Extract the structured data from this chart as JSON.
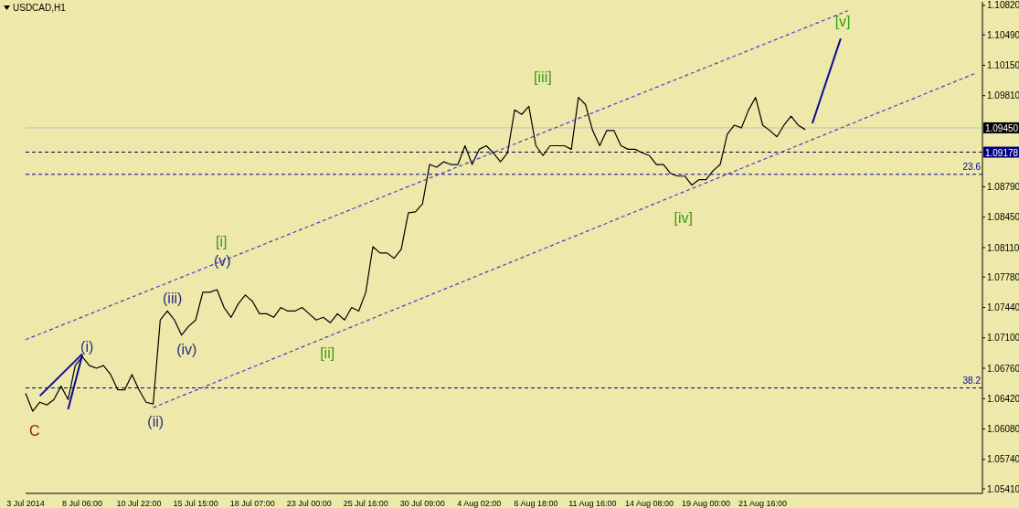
{
  "chart_data": {
    "type": "line",
    "title": "USDCAD,H1",
    "categories": [
      "3 Jul 2014",
      null,
      null,
      null,
      null,
      null,
      null,
      null,
      "8 Jul 06:00",
      null,
      null,
      null,
      null,
      null,
      null,
      null,
      "10 Jul 22:00",
      null,
      null,
      null,
      null,
      null,
      null,
      null,
      "15 Jul 15:00",
      null,
      null,
      null,
      null,
      null,
      null,
      null,
      "18 Jul 07:00",
      null,
      null,
      null,
      null,
      null,
      null,
      null,
      "23 Jul 00:00",
      null,
      null,
      null,
      null,
      null,
      null,
      null,
      "25 Jul 16:00",
      null,
      null,
      null,
      null,
      null,
      null,
      null,
      "30 Jul 09:00",
      null,
      null,
      null,
      null,
      null,
      null,
      null,
      "4 Aug 02:00",
      null,
      null,
      null,
      null,
      null,
      null,
      null,
      "6 Aug 18:00",
      null,
      null,
      null,
      null,
      null,
      null,
      null,
      "11 Aug 16:00",
      null,
      null,
      null,
      null,
      null,
      null,
      null,
      "14 Aug 08:00",
      null,
      null,
      null,
      null,
      null,
      null,
      null,
      "19 Aug 00:00",
      null,
      null,
      null,
      null,
      null,
      null,
      null,
      "21 Aug 16:00",
      null,
      null,
      null,
      null,
      null,
      null,
      null,
      null,
      null,
      null,
      null,
      null,
      null,
      null,
      null,
      null,
      null,
      null,
      null,
      null,
      null,
      null,
      null,
      null,
      null,
      null,
      null,
      null,
      null,
      null,
      null
    ],
    "series": [
      {
        "color": "#000000",
        "line_style": "solid",
        "values": [
          1.0648,
          1.0628,
          1.0638,
          1.0635,
          1.0641,
          1.0656,
          1.0641,
          1.0679,
          1.0689,
          1.0679,
          1.0676,
          1.0679,
          1.0669,
          1.0652,
          1.0652,
          1.0669,
          1.0652,
          1.0638,
          1.0636,
          1.073,
          1.074,
          1.073,
          1.0713,
          1.0723,
          1.073,
          1.0761,
          1.0761,
          1.0764,
          1.0744,
          1.0733,
          1.0748,
          1.0758,
          1.0751,
          1.0737,
          1.0737,
          1.0733,
          1.0744,
          1.074,
          1.074,
          1.0744,
          1.0737,
          1.073,
          1.0733,
          1.0727,
          1.0737,
          1.073,
          1.0744,
          1.074,
          1.0761,
          1.0812,
          1.0805,
          1.0805,
          1.0799,
          1.0809,
          1.085,
          1.0851,
          1.086,
          1.0904,
          1.0901,
          1.0907,
          1.0904,
          1.0904,
          1.0925,
          1.0904,
          1.0921,
          1.0925,
          1.0917,
          1.0907,
          1.0917,
          1.0965,
          1.096,
          1.0969,
          1.0925,
          1.0914,
          1.0925,
          1.0925,
          1.0925,
          1.0921,
          1.0979,
          1.0971,
          1.0942,
          1.0925,
          1.0942,
          1.0942,
          1.0925,
          1.0921,
          1.0921,
          1.0917,
          1.0914,
          1.0904,
          1.0904,
          1.0894,
          1.0891,
          1.0891,
          1.0881,
          1.0887,
          1.0887,
          1.0897,
          1.0904,
          1.0938,
          1.0948,
          1.0945,
          1.0965,
          1.0979,
          1.0948,
          1.0942,
          1.0935,
          1.0948,
          1.0958,
          1.0948,
          1.0943,
          null,
          null,
          null,
          null,
          null,
          null,
          null,
          null,
          null,
          null,
          null,
          null,
          null,
          null,
          null,
          null,
          null,
          null,
          null,
          null,
          null,
          null,
          null,
          null,
          null
        ]
      },
      {
        "type": "line",
        "color": "#4a3cc8",
        "line_style": "dashed",
        "values": [
          1.0708,
          null,
          null,
          null,
          null,
          null,
          null,
          null,
          null,
          null,
          null,
          null,
          null,
          null,
          null,
          null,
          null,
          null,
          null,
          null,
          null,
          null,
          null,
          null,
          null,
          null,
          null,
          null,
          null,
          null,
          null,
          null,
          null,
          null,
          null,
          null,
          null,
          null,
          null,
          null,
          null,
          null,
          null,
          null,
          null,
          null,
          null,
          null,
          null,
          null,
          null,
          null,
          null,
          null,
          null,
          null,
          null,
          null,
          null,
          null,
          null,
          null,
          null,
          null,
          null,
          null,
          null,
          null,
          null,
          null,
          null,
          null,
          null,
          null,
          null,
          null,
          null,
          null,
          null,
          null,
          null,
          null,
          null,
          null,
          null,
          null,
          null,
          null,
          null,
          null,
          null,
          null,
          null,
          null,
          null,
          null,
          null,
          null,
          null,
          null,
          null,
          null,
          null,
          null,
          null,
          null,
          null,
          null,
          null,
          null,
          null,
          null,
          null,
          null,
          null,
          null,
          1.1076,
          null,
          null,
          null,
          null,
          null,
          null,
          null,
          null,
          null,
          null,
          null,
          null,
          null,
          null,
          null,
          null,
          null,
          null,
          null
        ]
      },
      {
        "type": "line",
        "color": "#4a3cc8",
        "line_style": "dashed",
        "values": [
          null,
          null,
          null,
          null,
          null,
          null,
          null,
          null,
          null,
          null,
          null,
          null,
          null,
          null,
          null,
          null,
          null,
          null,
          1.0632,
          null,
          null,
          null,
          null,
          null,
          null,
          null,
          null,
          null,
          null,
          null,
          null,
          null,
          null,
          null,
          null,
          null,
          null,
          null,
          null,
          null,
          null,
          null,
          null,
          null,
          null,
          null,
          null,
          null,
          null,
          null,
          null,
          null,
          null,
          null,
          null,
          null,
          null,
          null,
          null,
          null,
          null,
          null,
          null,
          null,
          null,
          null,
          null,
          null,
          null,
          null,
          null,
          null,
          null,
          null,
          null,
          null,
          null,
          null,
          null,
          null,
          null,
          null,
          null,
          null,
          null,
          null,
          null,
          null,
          null,
          null,
          null,
          null,
          null,
          null,
          null,
          null,
          null,
          null,
          null,
          null,
          null,
          null,
          null,
          null,
          null,
          null,
          null,
          null,
          null,
          null,
          null,
          null,
          null,
          null,
          null,
          null,
          null,
          null,
          null,
          null,
          null,
          null,
          null,
          null,
          null,
          null,
          null,
          null,
          null,
          null,
          null,
          null,
          null,
          null,
          1.1006,
          null
        ]
      },
      {
        "type": "line",
        "color": "#0a0a9a",
        "line_style": "solid",
        "values": [
          null,
          null,
          null,
          null,
          null,
          null,
          null,
          null,
          null,
          null,
          null,
          null,
          null,
          null,
          null,
          null,
          null,
          null,
          null,
          null,
          null,
          null,
          null,
          null,
          null,
          null,
          null,
          null,
          null,
          null,
          null,
          null,
          null,
          null,
          null,
          null,
          null,
          null,
          null,
          null,
          null,
          null,
          null,
          null,
          null,
          null,
          null,
          null,
          null,
          null,
          null,
          null,
          null,
          null,
          null,
          null,
          null,
          null,
          null,
          null,
          null,
          null,
          null,
          null,
          null,
          null,
          null,
          null,
          null,
          null,
          null,
          null,
          null,
          null,
          null,
          null,
          null,
          null,
          null,
          null,
          null,
          null,
          null,
          null,
          null,
          null,
          null,
          null,
          null,
          null,
          null,
          null,
          null,
          null,
          null,
          null,
          null,
          null,
          null,
          null,
          null,
          null,
          null,
          null,
          null,
          null,
          null,
          null,
          null,
          null,
          null,
          1.095,
          null,
          null,
          null,
          1.1045,
          null,
          null,
          null,
          null,
          null,
          null,
          null,
          null,
          null,
          null,
          null,
          null,
          null,
          null,
          null,
          null,
          null,
          null,
          null,
          null
        ]
      },
      {
        "type": "line",
        "color": "#0a0a9a",
        "line_style": "solid",
        "values": [
          null,
          null,
          1.0645,
          null,
          null,
          null,
          null,
          null,
          1.0692,
          null,
          null,
          null,
          null,
          null,
          null,
          null,
          null,
          null,
          null,
          null,
          null,
          null,
          null,
          null,
          null,
          null,
          null,
          null,
          null,
          null,
          null,
          null,
          null,
          null,
          null,
          null,
          null,
          null,
          null,
          null,
          null,
          null,
          null,
          null,
          null,
          null,
          null,
          null,
          null,
          null,
          null,
          null,
          null,
          null,
          null,
          null,
          null,
          null,
          null,
          null,
          null,
          null,
          null,
          null,
          null,
          null,
          null,
          null,
          null,
          null,
          null,
          null,
          null,
          null,
          null,
          null,
          null,
          null,
          null,
          null,
          null,
          null,
          null,
          null,
          null,
          null,
          null,
          null,
          null,
          null,
          null,
          null,
          null,
          null,
          null,
          null,
          null,
          null,
          null,
          null,
          null,
          null,
          null,
          null,
          null,
          null,
          null,
          null,
          null,
          null,
          null,
          null,
          null,
          null,
          null,
          null,
          null,
          null,
          null,
          null,
          null,
          null,
          null,
          null,
          null,
          null,
          null,
          null,
          null,
          null,
          null,
          null,
          null,
          null,
          null,
          null
        ]
      },
      {
        "type": "line",
        "color": "#0a0a9a",
        "line_style": "solid",
        "values": [
          null,
          null,
          null,
          null,
          null,
          null,
          1.063,
          null,
          1.0691,
          null,
          null,
          null,
          null,
          null,
          null,
          null,
          null,
          null,
          null,
          null,
          null,
          null,
          null,
          null,
          null,
          null,
          null,
          null,
          null,
          null,
          null,
          null,
          null,
          null,
          null,
          null,
          null,
          null,
          null,
          null,
          null,
          null,
          null,
          null,
          null,
          null,
          null,
          null,
          null,
          null,
          null,
          null,
          null,
          null,
          null,
          null,
          null,
          null,
          null,
          null,
          null,
          null,
          null,
          null,
          null,
          null,
          null,
          null,
          null,
          null,
          null,
          null,
          null,
          null,
          null,
          null,
          null,
          null,
          null,
          null,
          null,
          null,
          null,
          null,
          null,
          null,
          null,
          null,
          null,
          null,
          null,
          null,
          null,
          null,
          null,
          null,
          null,
          null,
          null,
          null,
          null,
          null,
          null,
          null,
          null,
          null,
          null,
          null,
          null,
          null,
          null,
          null,
          null,
          null,
          null,
          null,
          null,
          null,
          null,
          null,
          null,
          null,
          null,
          null,
          null,
          null,
          null,
          null,
          null,
          null,
          null,
          null,
          null,
          null,
          null,
          null
        ]
      }
    ],
    "ylim": [
      1.0536,
      1.1086
    ],
    "yticks": [
      {
        "value": 1.0541,
        "label": "1.05410"
      },
      {
        "value": 1.0574,
        "label": "1.05740"
      },
      {
        "value": 1.0608,
        "label": "1.06080"
      },
      {
        "value": 1.0642,
        "label": "1.06420"
      },
      {
        "value": 1.0676,
        "label": "1.06760"
      },
      {
        "value": 1.071,
        "label": "1.07100"
      },
      {
        "value": 1.0744,
        "label": "1.07440"
      },
      {
        "value": 1.0778,
        "label": "1.07780"
      },
      {
        "value": 1.0811,
        "label": "1.08110"
      },
      {
        "value": 1.0845,
        "label": "1.08450"
      },
      {
        "value": 1.0879,
        "label": "1.08790"
      },
      {
        "value": 1.0981,
        "label": "1.09810"
      },
      {
        "value": 1.1015,
        "label": "1.10150"
      },
      {
        "value": 1.1049,
        "label": "1.10490"
      },
      {
        "value": 1.1082,
        "label": "1.10820"
      }
    ],
    "ref_lines": [
      {
        "axis": "y",
        "value": 1.0945,
        "label": "1.09450",
        "color": "#c0c0c0",
        "line_style": "solid"
      },
      {
        "axis": "y",
        "value": 1.09178,
        "label": "1.09178",
        "color": "#000060",
        "line_style": "dashed"
      },
      {
        "axis": "y",
        "value": 1.0893,
        "color": "#0000a0",
        "line_style": "dashed"
      },
      {
        "axis": "y",
        "value": 1.0654,
        "color": "#0000a0",
        "line_style": "dashed"
      }
    ],
    "annotations": [
      "C",
      "(i)",
      "(ii)",
      "(iii)",
      "(iv)",
      "(v)",
      "[i]",
      "[ii]",
      "[iii]",
      "[iv]",
      "[v]",
      {
        "text": "23.6",
        "y": 1.0893
      },
      {
        "text": "38.2",
        "y": 1.0654
      }
    ],
    "marker": "none"
  }
}
